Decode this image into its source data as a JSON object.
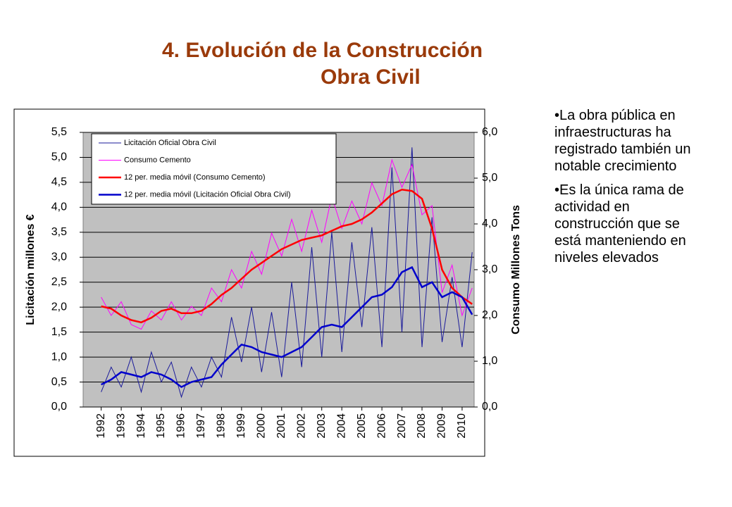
{
  "title_lines": [
    "4. Evolución de la Construcción",
    "Obra Civil"
  ],
  "bullets": [
    "•La obra pública en infraestructuras ha registrado también un notable crecimiento",
    "•Es la única rama de actividad en construcción que se está manteniendo en niveles elevados"
  ],
  "chart_data": {
    "type": "line",
    "ylabel": "Licitación millones €",
    "y2label": "Consumo Millones Tons",
    "x": [
      1992.0,
      1992.5,
      1993.0,
      1993.5,
      1994.0,
      1994.5,
      1995.0,
      1995.5,
      1996.0,
      1996.5,
      1997.0,
      1997.5,
      1998.0,
      1998.5,
      1999.0,
      1999.5,
      2000.0,
      2000.5,
      2001.0,
      2001.5,
      2002.0,
      2002.5,
      2003.0,
      2003.5,
      2004.0,
      2004.5,
      2005.0,
      2005.5,
      2006.0,
      2006.5,
      2007.0,
      2007.5,
      2008.0,
      2008.5,
      2009.0,
      2009.5,
      2010.0,
      2010.5
    ],
    "xlim": [
      1991.1,
      2010.6
    ],
    "xticks": [
      1992,
      1993,
      1994,
      1995,
      1996,
      1997,
      1998,
      1999,
      2000,
      2001,
      2002,
      2003,
      2004,
      2005,
      2006,
      2007,
      2008,
      2009,
      2010
    ],
    "ylim": [
      0,
      5.5
    ],
    "yticks": [
      {
        "value": 0,
        "label": "0,0"
      },
      {
        "value": 0.5,
        "label": "0,5"
      },
      {
        "value": 1,
        "label": "1,0"
      },
      {
        "value": 1.5,
        "label": "1,5"
      },
      {
        "value": 2,
        "label": "2,0"
      },
      {
        "value": 2.5,
        "label": "2,5"
      },
      {
        "value": 3,
        "label": "3,0"
      },
      {
        "value": 3.5,
        "label": "3,5"
      },
      {
        "value": 4,
        "label": "4,0"
      },
      {
        "value": 4.5,
        "label": "4,5"
      },
      {
        "value": 5,
        "label": "5,0"
      },
      {
        "value": 5.5,
        "label": "5,5"
      }
    ],
    "y2lim": [
      0,
      6
    ],
    "y2ticks": [
      {
        "value": 0,
        "label": "0,0"
      },
      {
        "value": 1,
        "label": "1,0"
      },
      {
        "value": 2,
        "label": "2,0"
      },
      {
        "value": 3,
        "label": "3,0"
      },
      {
        "value": 4,
        "label": "4,0"
      },
      {
        "value": 5,
        "label": "5,0"
      },
      {
        "value": 6,
        "label": "6,0"
      }
    ],
    "grid": true,
    "series": [
      {
        "name": "Licitación Oficial Obra Civil",
        "color": "#1a1a9a",
        "width": 1,
        "values": [
          0.3,
          0.8,
          0.4,
          1.0,
          0.3,
          1.1,
          0.5,
          0.9,
          0.2,
          0.8,
          0.4,
          1.0,
          0.6,
          1.8,
          0.9,
          2.0,
          0.7,
          1.9,
          0.6,
          2.5,
          0.8,
          3.2,
          1.0,
          3.5,
          1.1,
          3.3,
          1.6,
          3.6,
          1.2,
          4.8,
          1.5,
          5.2,
          1.2,
          3.8,
          1.3,
          2.6,
          1.2,
          3.1
        ]
      },
      {
        "name": "Consumo Cemento",
        "color": "#ff00ff",
        "width": 1,
        "axis": "y2",
        "values": [
          2.4,
          2.0,
          2.3,
          1.8,
          1.7,
          2.1,
          1.9,
          2.3,
          1.9,
          2.2,
          2.0,
          2.6,
          2.3,
          3.0,
          2.6,
          3.4,
          2.9,
          3.8,
          3.3,
          4.1,
          3.4,
          4.3,
          3.6,
          4.6,
          3.9,
          4.5,
          4.0,
          4.9,
          4.4,
          5.4,
          4.8,
          5.3,
          4.2,
          4.4,
          2.5,
          3.1,
          2.0,
          2.6
        ]
      },
      {
        "name": "12 per. media móvil (Consumo Cemento)",
        "color": "#ff0000",
        "width": 2.5,
        "axis": "y2",
        "values": [
          2.2,
          2.15,
          2.0,
          1.9,
          1.85,
          1.95,
          2.1,
          2.15,
          2.05,
          2.05,
          2.1,
          2.25,
          2.45,
          2.6,
          2.8,
          3.0,
          3.15,
          3.3,
          3.45,
          3.55,
          3.65,
          3.7,
          3.75,
          3.85,
          3.95,
          4.0,
          4.1,
          4.25,
          4.45,
          4.65,
          4.75,
          4.72,
          4.55,
          3.9,
          3.0,
          2.6,
          2.4,
          2.25
        ]
      },
      {
        "name": "12 per. media móvil (Licitación Oficial Obra Civil)",
        "color": "#0000cc",
        "width": 2.5,
        "values": [
          0.45,
          0.55,
          0.7,
          0.65,
          0.6,
          0.7,
          0.65,
          0.55,
          0.4,
          0.5,
          0.55,
          0.6,
          0.85,
          1.05,
          1.25,
          1.2,
          1.1,
          1.05,
          1.0,
          1.1,
          1.2,
          1.4,
          1.6,
          1.65,
          1.6,
          1.8,
          2.0,
          2.2,
          2.25,
          2.4,
          2.7,
          2.8,
          2.4,
          2.5,
          2.2,
          2.3,
          2.2,
          1.85
        ]
      }
    ]
  }
}
